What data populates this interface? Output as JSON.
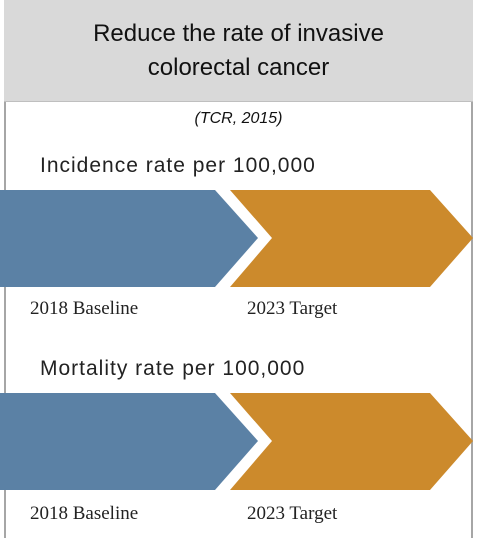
{
  "header": {
    "title": "Reduce the rate of invasive colorectal cancer",
    "source": "(TCR, 2015)"
  },
  "sections": [
    {
      "label": "Incidence rate per 100,000",
      "baseline_label": "2018 Baseline",
      "target_label": "2023 Target"
    },
    {
      "label": "Mortality rate per 100,000",
      "baseline_label": "2018 Baseline",
      "target_label": "2023 Target"
    }
  ]
}
